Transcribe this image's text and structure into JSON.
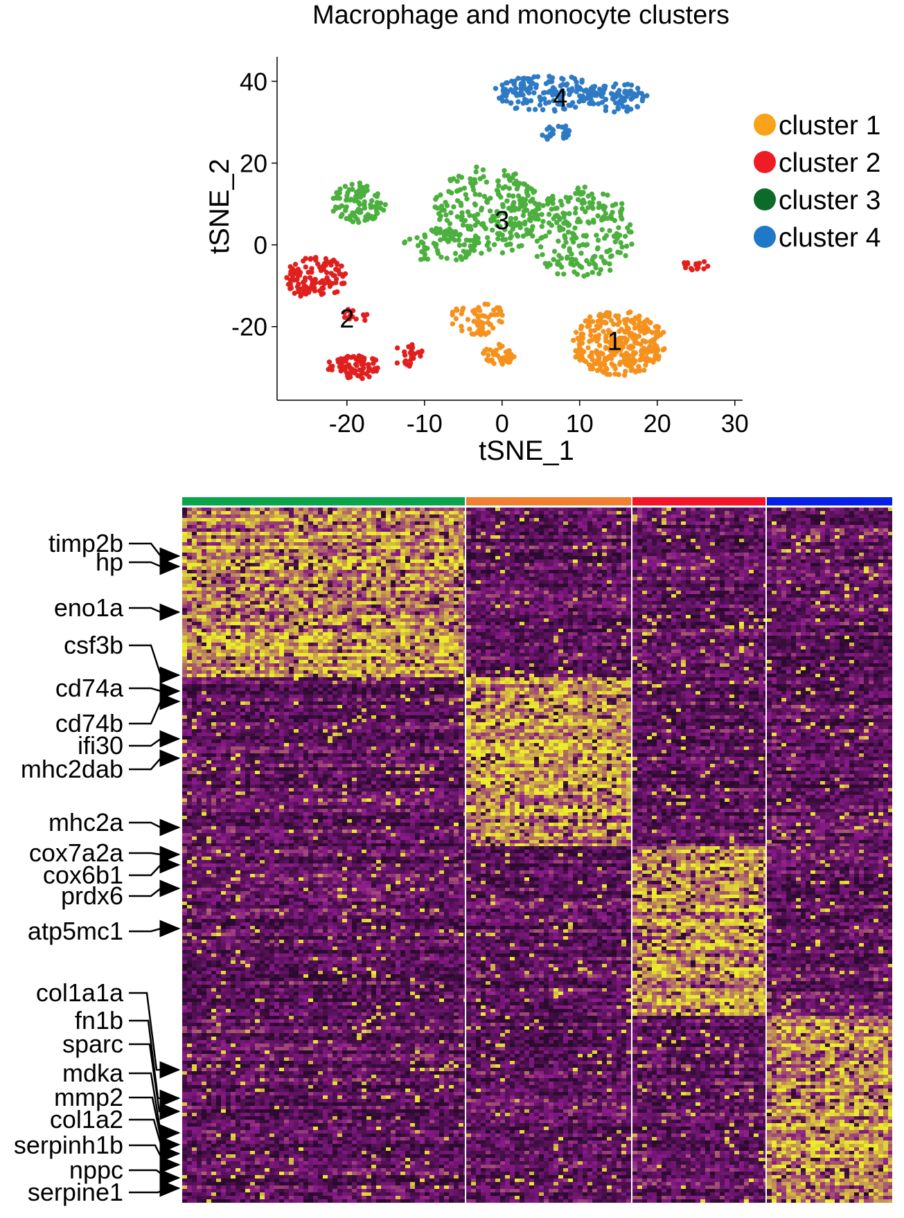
{
  "scatter": {
    "title": "Macrophage and monocyte clusters",
    "xlabel": "tSNE_1",
    "ylabel": "tSNE_2",
    "xlim": [
      -29,
      31
    ],
    "ylim": [
      -38,
      46
    ],
    "xticks": [
      -20,
      -10,
      0,
      10,
      20,
      30
    ],
    "yticks": [
      -20,
      0,
      20,
      40
    ],
    "xtick_labels": [
      "-20",
      "-10",
      "0",
      "10",
      "20",
      "30"
    ],
    "ytick_labels": [
      "-20",
      "0",
      "20",
      "40"
    ],
    "legend_position": "right",
    "clusters": [
      {
        "id": 1,
        "label": "1",
        "legend": "cluster 1",
        "color": "#f5921e",
        "legend_color": "#f9a31a",
        "center": [
          14.5,
          -23.5
        ]
      },
      {
        "id": 2,
        "label": "2",
        "legend": "cluster 2",
        "color": "#e0201e",
        "legend_color": "#ee1c24",
        "center": [
          -20,
          -18
        ]
      },
      {
        "id": 3,
        "label": "3",
        "legend": "cluster 3",
        "color": "#4caf3e",
        "legend_color": "#0d6b2a",
        "center": [
          0,
          6
        ]
      },
      {
        "id": 4,
        "label": "4",
        "legend": "cluster 4",
        "color": "#2e7ac4",
        "legend_color": "#1f78c8",
        "center": [
          7.5,
          36
        ]
      }
    ]
  },
  "chart_data": [
    {
      "type": "scatter",
      "title": "Macrophage and monocyte clusters",
      "xlabel": "tSNE_1",
      "ylabel": "tSNE_2",
      "xlim": [
        -29,
        31
      ],
      "ylim": [
        -38,
        46
      ],
      "legend": [
        "cluster 1",
        "cluster 2",
        "cluster 3",
        "cluster 4"
      ],
      "series": [
        {
          "name": "cluster 1",
          "regions": [
            {
              "x": 15,
              "y": -24,
              "rx": 6,
              "ry": 8,
              "n": 330
            },
            {
              "x": -3,
              "y": -18,
              "rx": 3.5,
              "ry": 4,
              "n": 60
            },
            {
              "x": -0.5,
              "y": -27,
              "rx": 2,
              "ry": 2.5,
              "n": 40
            }
          ]
        },
        {
          "name": "cluster 2",
          "regions": [
            {
              "x": -24,
              "y": -8,
              "rx": 4,
              "ry": 5,
              "n": 120
            },
            {
              "x": -19,
              "y": -30,
              "rx": 3.5,
              "ry": 3,
              "n": 80
            },
            {
              "x": -12,
              "y": -27,
              "rx": 2,
              "ry": 3,
              "n": 25
            },
            {
              "x": -19,
              "y": -17,
              "rx": 2,
              "ry": 1.5,
              "n": 15
            },
            {
              "x": 25,
              "y": -5,
              "rx": 2,
              "ry": 1.3,
              "n": 15
            }
          ]
        },
        {
          "name": "cluster 3",
          "regions": [
            {
              "x": -18.5,
              "y": 10,
              "rx": 3.5,
              "ry": 5,
              "n": 90
            },
            {
              "x": -2,
              "y": 8,
              "rx": 7,
              "ry": 11,
              "n": 240
            },
            {
              "x": 10,
              "y": 3,
              "rx": 7,
              "ry": 11,
              "n": 230
            },
            {
              "x": -8,
              "y": 0,
              "rx": 5,
              "ry": 4,
              "n": 60
            }
          ]
        },
        {
          "name": "cluster 4",
          "regions": [
            {
              "x": 6,
              "y": 37,
              "rx": 7,
              "ry": 4.5,
              "n": 170
            },
            {
              "x": 15,
              "y": 36,
              "rx": 4,
              "ry": 3.5,
              "n": 70
            },
            {
              "x": 7,
              "y": 27.5,
              "rx": 2,
              "ry": 2,
              "n": 25
            }
          ]
        }
      ]
    },
    {
      "type": "heatmap",
      "column_groups": [
        {
          "cluster": "cluster 3",
          "color": "#0aa54a"
        },
        {
          "cluster": "cluster 1",
          "color": "#f07f32"
        },
        {
          "cluster": "cluster 2",
          "color": "#f51528"
        },
        {
          "cluster": "cluster 4",
          "color": "#0620e8"
        }
      ],
      "row_blocks": [
        "cluster 3 markers",
        "cluster 1 markers",
        "cluster 2 markers",
        "cluster 4 markers"
      ],
      "high_block_of_group": [
        0,
        1,
        2,
        3
      ],
      "colors": {
        "low": "#2a0a2d",
        "mid": "#8a1a8a",
        "high": "#ecec2a"
      },
      "labeled_genes": [
        "timp2b",
        "hp",
        "eno1a",
        "csf3b",
        "cd74a",
        "cd74b",
        "ifi30",
        "mhc2dab",
        "mhc2a",
        "cox7a2a",
        "cox6b1",
        "prdx6",
        "atp5mc1",
        "col1a1a",
        "fn1b",
        "sparc",
        "mdka",
        "mmp2",
        "col1a2",
        "serpinh1b",
        "nppc",
        "serpine1"
      ]
    }
  ],
  "genes": [
    {
      "name": "timp2b"
    },
    {
      "name": "hp"
    },
    {
      "name": "eno1a"
    },
    {
      "name": "csf3b"
    },
    {
      "name": "cd74a"
    },
    {
      "name": "cd74b"
    },
    {
      "name": "ifi30"
    },
    {
      "name": "mhc2dab"
    },
    {
      "name": "mhc2a"
    },
    {
      "name": "cox7a2a"
    },
    {
      "name": "cox6b1"
    },
    {
      "name": "prdx6"
    },
    {
      "name": "atp5mc1"
    },
    {
      "name": "col1a1a"
    },
    {
      "name": "fn1b"
    },
    {
      "name": "sparc"
    },
    {
      "name": "mdka"
    },
    {
      "name": "mmp2"
    },
    {
      "name": "col1a2"
    },
    {
      "name": "serpinh1b"
    },
    {
      "name": "nppc"
    },
    {
      "name": "serpine1"
    }
  ]
}
